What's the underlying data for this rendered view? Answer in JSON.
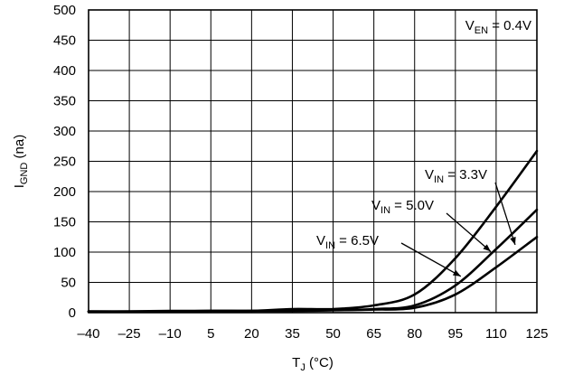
{
  "chart_data": {
    "type": "line",
    "xlabel": {
      "main": "T",
      "sub": "J",
      "tail": " (°C)"
    },
    "ylabel": {
      "main": "I",
      "sub": "GND",
      "tail": " (na)"
    },
    "xlim": [
      -40,
      125
    ],
    "ylim": [
      0,
      500
    ],
    "x_ticks": [
      -40,
      -25,
      -10,
      5,
      20,
      35,
      50,
      65,
      80,
      95,
      110,
      125
    ],
    "x_tick_labels": [
      "–40",
      "–25",
      "–10",
      "5",
      "20",
      "35",
      "50",
      "65",
      "80",
      "95",
      "110",
      "125"
    ],
    "y_ticks": [
      0,
      50,
      100,
      150,
      200,
      250,
      300,
      350,
      400,
      450,
      500
    ],
    "y_tick_labels": [
      "0",
      "50",
      "100",
      "150",
      "200",
      "250",
      "300",
      "350",
      "400",
      "450",
      "500"
    ],
    "grid": true,
    "annotations": [
      {
        "main": "V",
        "sub": "EN",
        "tail": " = 0.4V"
      }
    ],
    "series": [
      {
        "label": {
          "main": "V",
          "sub": "IN",
          "tail": " = 3.3V"
        },
        "x": [
          -40,
          -25,
          -10,
          5,
          20,
          35,
          50,
          65,
          80,
          95,
          110,
          125
        ],
        "y": [
          2,
          2,
          2,
          3,
          3,
          3,
          4,
          5,
          8,
          30,
          75,
          125
        ]
      },
      {
        "label": {
          "main": "V",
          "sub": "IN",
          "tail": " = 5.0V"
        },
        "x": [
          -40,
          -25,
          -10,
          5,
          20,
          35,
          50,
          65,
          80,
          95,
          110,
          125
        ],
        "y": [
          2,
          2,
          2,
          3,
          3,
          3,
          4,
          6,
          12,
          45,
          105,
          170
        ]
      },
      {
        "label": {
          "main": "V",
          "sub": "IN",
          "tail": " = 6.5V"
        },
        "x": [
          -40,
          -25,
          -10,
          5,
          20,
          35,
          50,
          65,
          80,
          95,
          110,
          125
        ],
        "y": [
          2,
          2,
          3,
          3,
          3,
          6,
          6,
          12,
          30,
          90,
          175,
          267
        ]
      }
    ]
  }
}
